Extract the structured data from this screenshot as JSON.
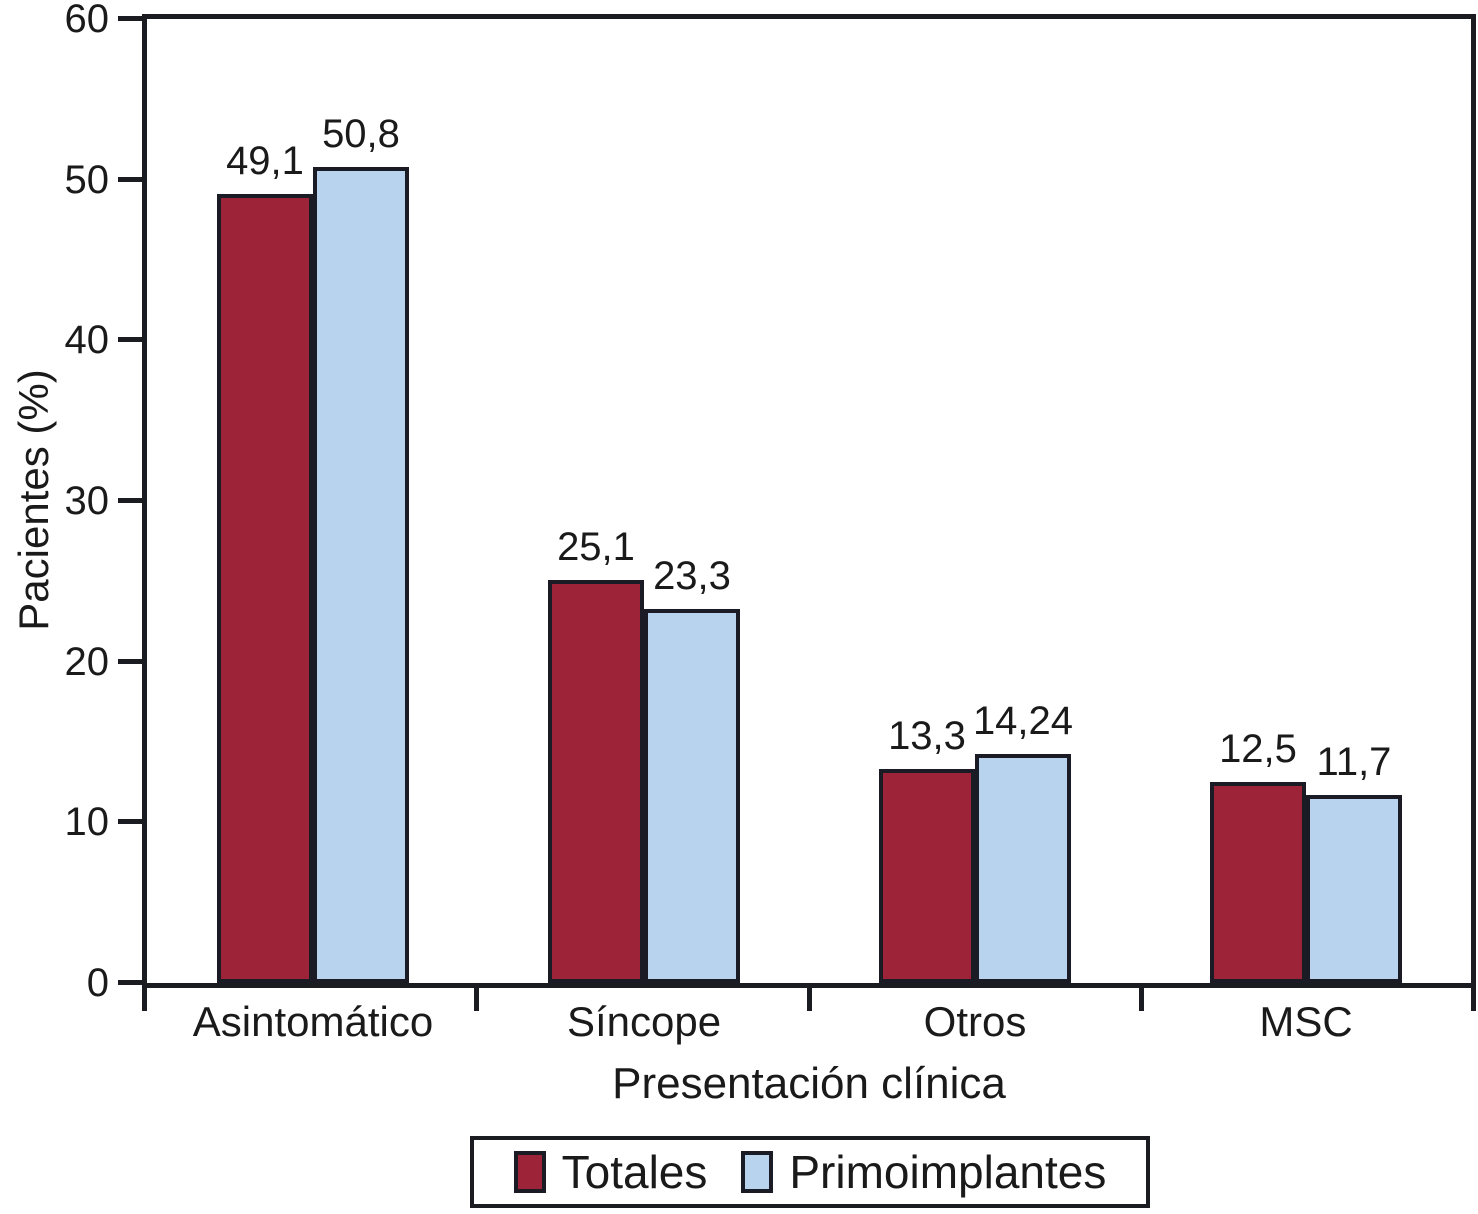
{
  "chart_data": {
    "type": "bar",
    "title": "",
    "categories": [
      "Asintomático",
      "Síncope",
      "Otros",
      "MSC"
    ],
    "series": [
      {
        "name": "Totales",
        "color": "#9D2438",
        "values": [
          49.1,
          25.1,
          13.3,
          12.5
        ],
        "labels": [
          "49,1",
          "25,1",
          "13,3",
          "12,5"
        ]
      },
      {
        "name": "Primoimplantes",
        "color": "#B7D3EE",
        "values": [
          50.8,
          23.3,
          14.24,
          11.7
        ],
        "labels": [
          "50,8",
          "23,3",
          "14,24",
          "11,7"
        ]
      }
    ],
    "xlabel": "Presentación clínica",
    "ylabel": "Pacientes (%)",
    "ylim": [
      0,
      60
    ],
    "yticks": [
      0,
      10,
      20,
      30,
      40,
      50,
      60
    ],
    "grid": false,
    "legend_position": "bottom",
    "axis_color": "#1b1b22",
    "bar_border_color": "#1b1b26"
  }
}
